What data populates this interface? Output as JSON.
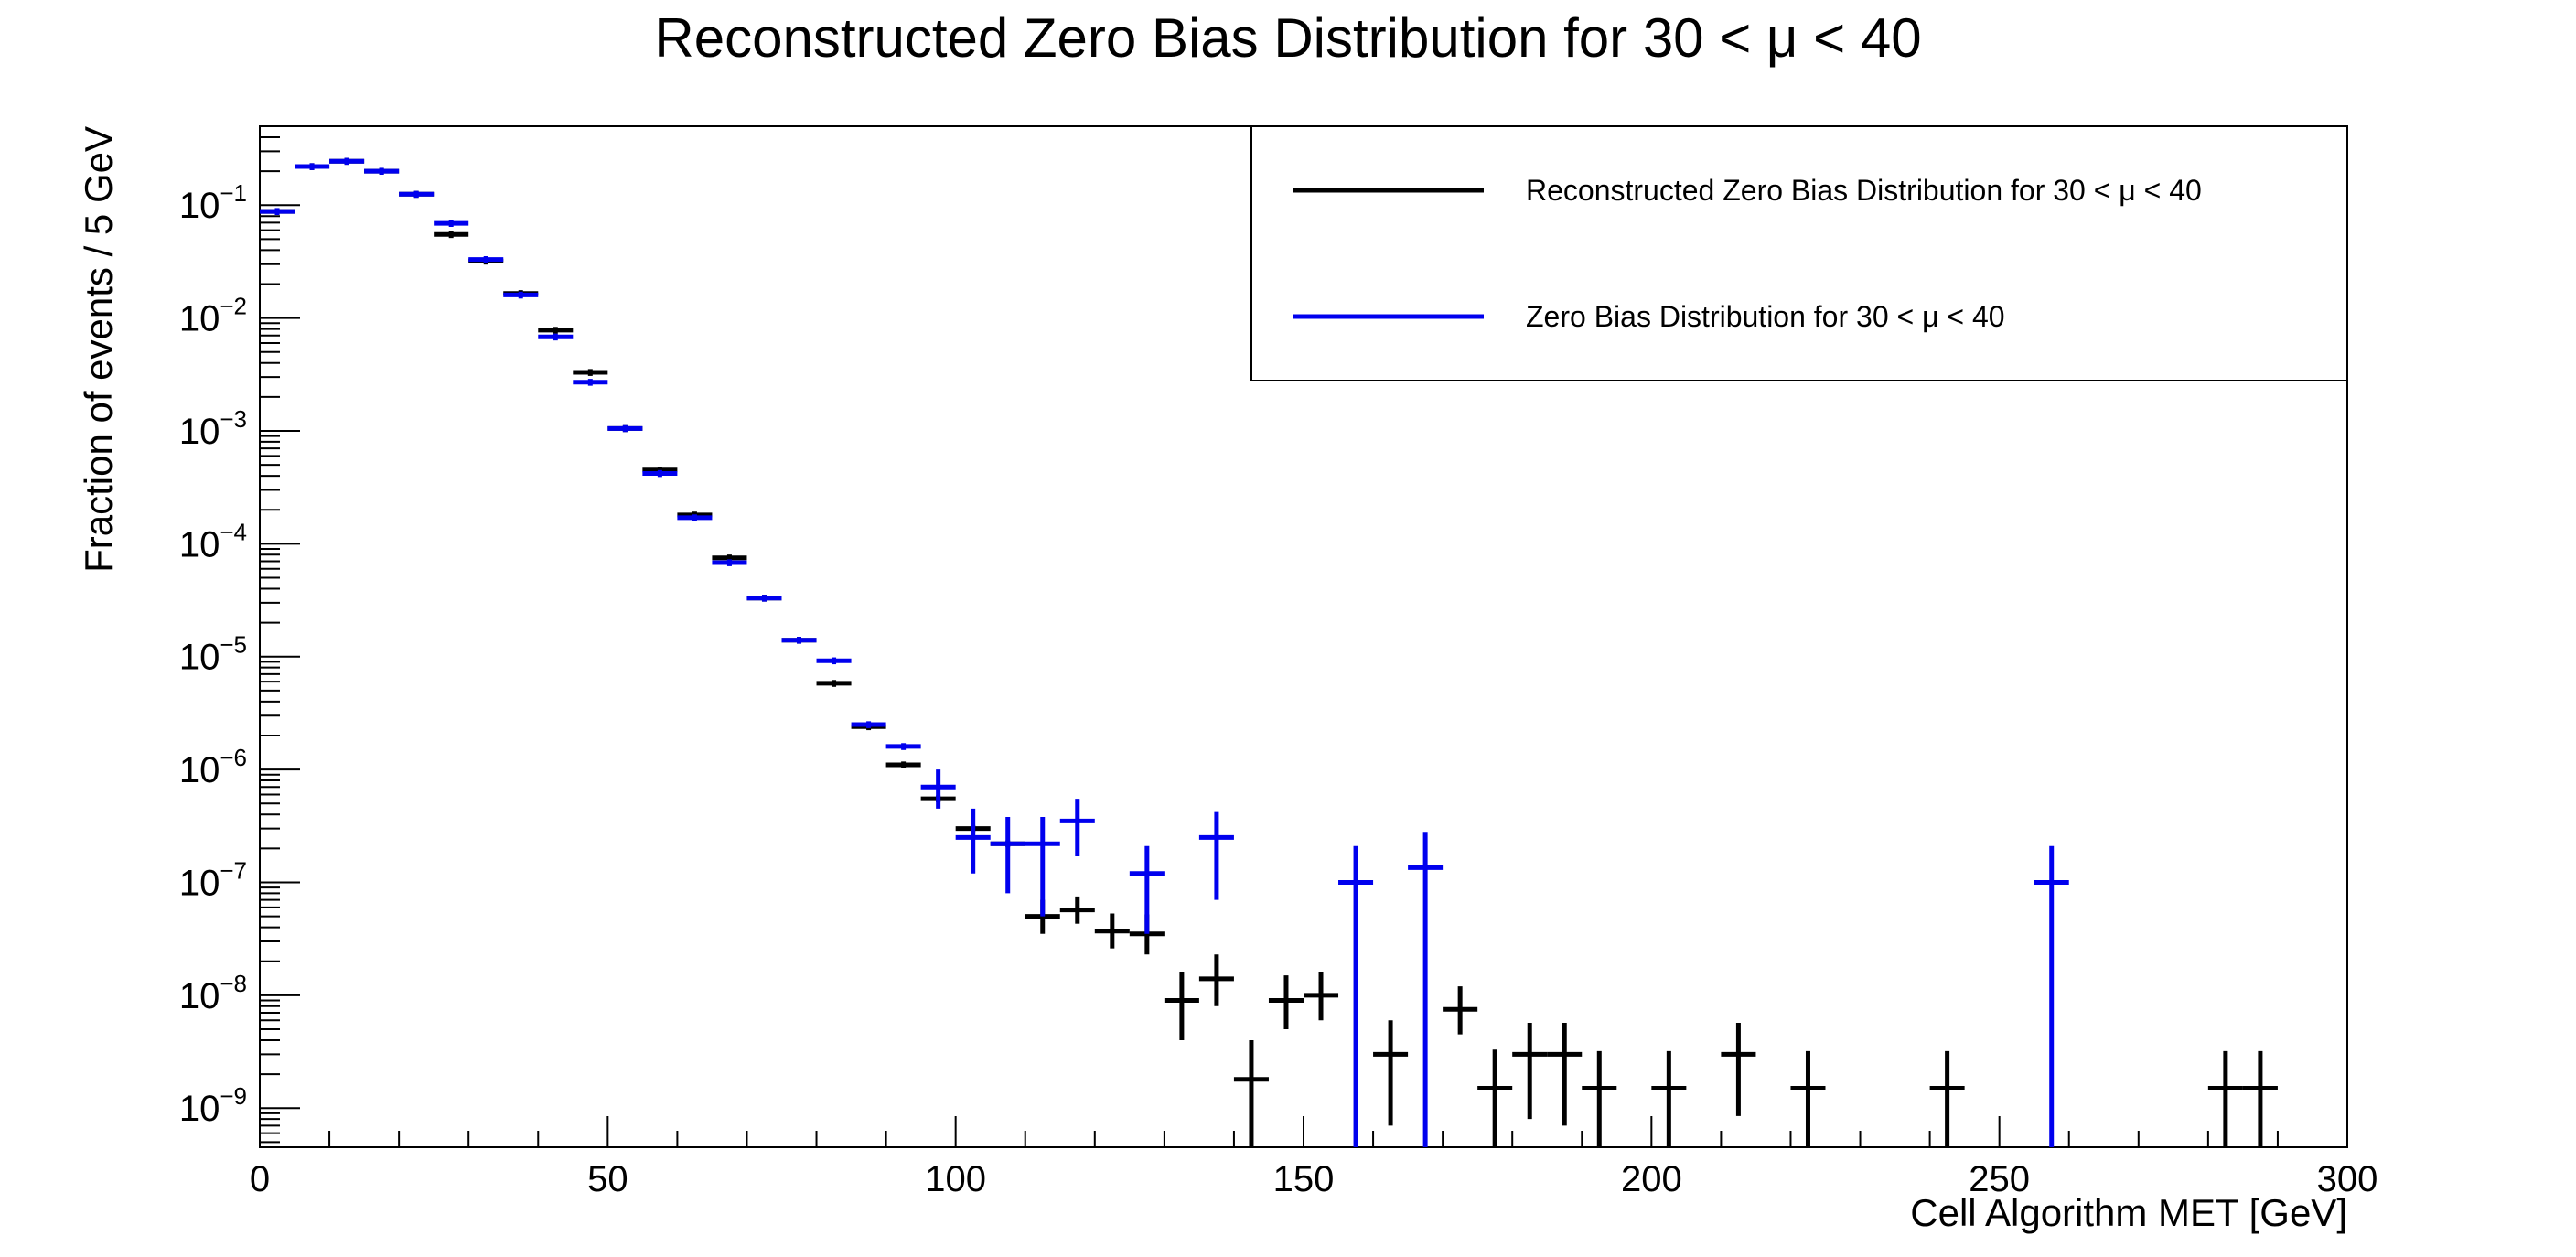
{
  "chart_data": {
    "type": "scatter",
    "title": "Reconstructed Zero Bias Distribution for 30 < μ < 40",
    "xlabel": "Cell Algorithm MET [GeV]",
    "ylabel": "Fraction of events / 5 GeV",
    "xlim": [
      0,
      300
    ],
    "ylim": [
      4.5e-10,
      0.5
    ],
    "y_scale": "log",
    "bin_width": 5,
    "x_ticks": [
      "0",
      "50",
      "100",
      "150",
      "200",
      "250",
      "300"
    ],
    "y_ticks": [
      {
        "base": "10",
        "exp": "−1",
        "value": 0.1
      },
      {
        "base": "10",
        "exp": "−2",
        "value": 0.01
      },
      {
        "base": "10",
        "exp": "−3",
        "value": 0.001
      },
      {
        "base": "10",
        "exp": "−4",
        "value": 0.0001
      },
      {
        "base": "10",
        "exp": "−5",
        "value": 1e-05
      },
      {
        "base": "10",
        "exp": "−6",
        "value": 1e-06
      },
      {
        "base": "10",
        "exp": "−7",
        "value": 1e-07
      },
      {
        "base": "10",
        "exp": "−8",
        "value": 1e-08
      },
      {
        "base": "10",
        "exp": "−9",
        "value": 1e-09
      }
    ],
    "grid": false,
    "legend_position": "top-right",
    "series": [
      {
        "name": "Reconstructed Zero Bias Distribution for 30 < μ < 40",
        "color": "#000000",
        "points": [
          {
            "x": 2.5,
            "y": 0.088
          },
          {
            "x": 7.5,
            "y": 0.22
          },
          {
            "x": 12.5,
            "y": 0.245
          },
          {
            "x": 17.5,
            "y": 0.2
          },
          {
            "x": 22.5,
            "y": 0.125
          },
          {
            "x": 27.5,
            "y": 0.055
          },
          {
            "x": 32.5,
            "y": 0.032
          },
          {
            "x": 37.5,
            "y": 0.0165
          },
          {
            "x": 42.5,
            "y": 0.0078
          },
          {
            "x": 47.5,
            "y": 0.0033
          },
          {
            "x": 52.5,
            "y": 0.00105
          },
          {
            "x": 57.5,
            "y": 0.00045
          },
          {
            "x": 62.5,
            "y": 0.00018
          },
          {
            "x": 67.5,
            "y": 7.5e-05
          },
          {
            "x": 72.5,
            "y": 3.3e-05
          },
          {
            "x": 77.5,
            "y": 1.4e-05
          },
          {
            "x": 82.5,
            "y": 5.8e-06
          },
          {
            "x": 87.5,
            "y": 2.4e-06
          },
          {
            "x": 92.5,
            "y": 1.1e-06
          },
          {
            "x": 97.5,
            "y": 5.5e-07
          },
          {
            "x": 102.5,
            "y": 3e-07
          },
          {
            "x": 107.5,
            "y": 2.2e-07
          },
          {
            "x": 112.5,
            "y": 5e-08,
            "err_low": 3.5e-08,
            "err_high": 7e-08
          },
          {
            "x": 117.5,
            "y": 5.7e-08,
            "err_low": 4.3e-08,
            "err_high": 7.5e-08
          },
          {
            "x": 122.5,
            "y": 3.7e-08,
            "err_low": 2.6e-08,
            "err_high": 5.3e-08
          },
          {
            "x": 127.5,
            "y": 3.5e-08,
            "err_low": 2.3e-08,
            "err_high": 5.2e-08
          },
          {
            "x": 132.5,
            "y": 9e-09,
            "err_low": 4e-09,
            "err_high": 1.6e-08
          },
          {
            "x": 137.5,
            "y": 1.4e-08,
            "err_low": 8e-09,
            "err_high": 2.3e-08
          },
          {
            "x": 142.5,
            "y": 1.8e-09,
            "err_low": 4.5e-10,
            "err_high": 4e-09
          },
          {
            "x": 147.5,
            "y": 9e-09,
            "err_low": 5e-09,
            "err_high": 1.5e-08
          },
          {
            "x": 152.5,
            "y": 1e-08,
            "err_low": 6e-09,
            "err_high": 1.6e-08
          },
          {
            "x": 162.5,
            "y": 3e-09,
            "err_low": 7e-10,
            "err_high": 6e-09
          },
          {
            "x": 172.5,
            "y": 7.5e-09,
            "err_low": 4.5e-09,
            "err_high": 1.2e-08
          },
          {
            "x": 177.5,
            "y": 1.5e-09,
            "err_low": 4.5e-10,
            "err_high": 3.3e-09
          },
          {
            "x": 182.5,
            "y": 3e-09,
            "err_low": 8e-10,
            "err_high": 5.7e-09
          },
          {
            "x": 187.5,
            "y": 3e-09,
            "err_low": 7e-10,
            "err_high": 5.7e-09
          },
          {
            "x": 192.5,
            "y": 1.5e-09,
            "err_low": 4.5e-10,
            "err_high": 3.2e-09
          },
          {
            "x": 202.5,
            "y": 1.5e-09,
            "err_low": 4.5e-10,
            "err_high": 3.2e-09
          },
          {
            "x": 212.5,
            "y": 3e-09,
            "err_low": 8.5e-10,
            "err_high": 5.7e-09
          },
          {
            "x": 222.5,
            "y": 1.5e-09,
            "err_low": 4.5e-10,
            "err_high": 3.2e-09
          },
          {
            "x": 242.5,
            "y": 1.5e-09,
            "err_low": 4.5e-10,
            "err_high": 3.2e-09
          },
          {
            "x": 282.5,
            "y": 1.5e-09,
            "err_low": 4.5e-10,
            "err_high": 3.2e-09
          },
          {
            "x": 287.5,
            "y": 1.5e-09,
            "err_low": 4.5e-10,
            "err_high": 3.2e-09
          }
        ]
      },
      {
        "name": "Zero Bias Distribution for 30 < μ < 40",
        "color": "#0000ee",
        "points": [
          {
            "x": 2.5,
            "y": 0.088
          },
          {
            "x": 7.5,
            "y": 0.22
          },
          {
            "x": 12.5,
            "y": 0.245
          },
          {
            "x": 17.5,
            "y": 0.2
          },
          {
            "x": 22.5,
            "y": 0.125
          },
          {
            "x": 27.5,
            "y": 0.069
          },
          {
            "x": 32.5,
            "y": 0.033
          },
          {
            "x": 37.5,
            "y": 0.016
          },
          {
            "x": 42.5,
            "y": 0.0068
          },
          {
            "x": 47.5,
            "y": 0.0027
          },
          {
            "x": 52.5,
            "y": 0.00105
          },
          {
            "x": 57.5,
            "y": 0.00042
          },
          {
            "x": 62.5,
            "y": 0.00017
          },
          {
            "x": 67.5,
            "y": 6.8e-05
          },
          {
            "x": 72.5,
            "y": 3.3e-05
          },
          {
            "x": 77.5,
            "y": 1.4e-05
          },
          {
            "x": 82.5,
            "y": 9.2e-06
          },
          {
            "x": 87.5,
            "y": 2.5e-06
          },
          {
            "x": 92.5,
            "y": 1.6e-06
          },
          {
            "x": 97.5,
            "y": 7e-07,
            "err_low": 4.5e-07,
            "err_high": 1e-06
          },
          {
            "x": 102.5,
            "y": 2.5e-07,
            "err_low": 1.2e-07,
            "err_high": 4.5e-07
          },
          {
            "x": 107.5,
            "y": 2.2e-07,
            "err_low": 8e-08,
            "err_high": 3.8e-07
          },
          {
            "x": 112.5,
            "y": 2.2e-07,
            "err_low": 5e-08,
            "err_high": 3.8e-07
          },
          {
            "x": 117.5,
            "y": 3.5e-07,
            "err_low": 1.7e-07,
            "err_high": 5.5e-07
          },
          {
            "x": 127.5,
            "y": 1.2e-07,
            "err_low": 3.5e-08,
            "err_high": 2.1e-07
          },
          {
            "x": 137.5,
            "y": 2.5e-07,
            "err_low": 7e-08,
            "err_high": 4.2e-07
          },
          {
            "x": 157.5,
            "y": 1e-07,
            "err_low": 4.5e-10,
            "err_high": 2.1e-07
          },
          {
            "x": 167.5,
            "y": 1.35e-07,
            "err_low": 4.5e-10,
            "err_high": 2.8e-07
          },
          {
            "x": 257.5,
            "y": 1e-07,
            "err_low": 4.5e-10,
            "err_high": 2.1e-07
          }
        ]
      }
    ]
  }
}
